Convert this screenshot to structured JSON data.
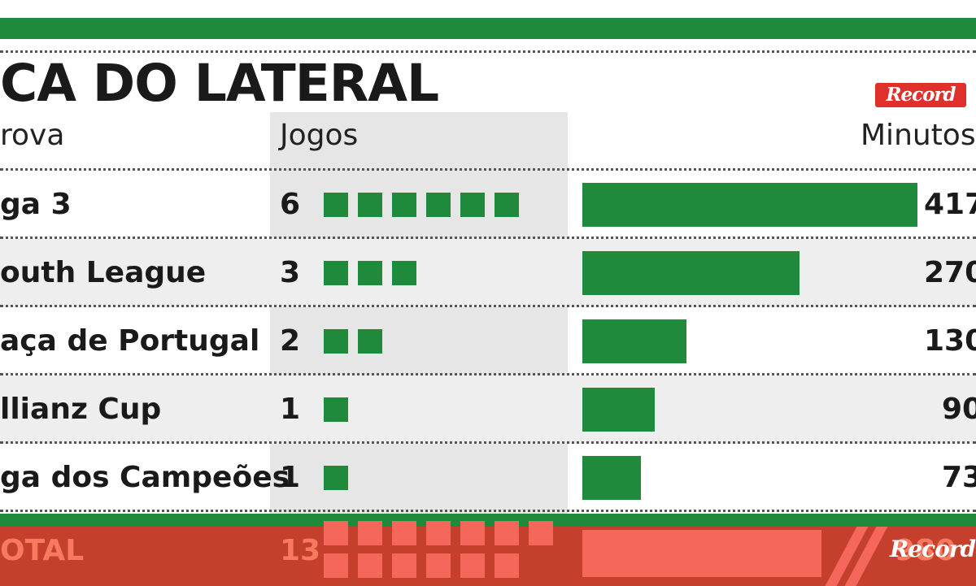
{
  "title": "CA DO LATERAL",
  "logo_text": "Record",
  "headers": {
    "competition": "rova",
    "games": "Jogos",
    "minutes": "Minutos"
  },
  "colors": {
    "green": "#1f8a3c",
    "footer_red": "#c4402d",
    "footer_accent": "#f4675a"
  },
  "chart_data": {
    "type": "bar",
    "categories": [
      "ga 3",
      "outh League",
      "aça de Portugal",
      "llianz Cup",
      "ga dos Campeões"
    ],
    "series": [
      {
        "values": [
          6,
          3,
          2,
          1,
          1
        ]
      },
      {
        "values": [
          417,
          270,
          130,
          90,
          73
        ]
      }
    ],
    "minute_labels": [
      "417",
      "270",
      "130",
      "90",
      "73"
    ],
    "game_labels": [
      "6",
      "3",
      "2",
      "1",
      "1"
    ],
    "total": {
      "label": "OTAL",
      "games": "13",
      "games_value": 13,
      "minutes_label": "980"
    }
  }
}
